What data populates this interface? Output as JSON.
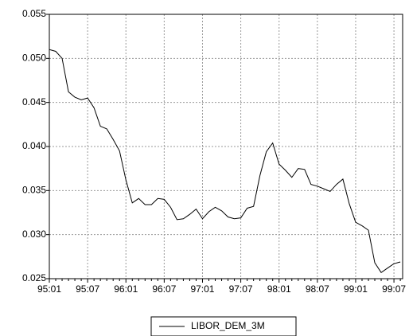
{
  "chart_data": {
    "type": "line",
    "categories": [
      "95:01",
      null,
      null,
      null,
      null,
      null,
      "95:07",
      null,
      null,
      null,
      null,
      null,
      "96:01",
      null,
      null,
      null,
      null,
      null,
      "96:07",
      null,
      null,
      null,
      null,
      null,
      "97:01",
      null,
      null,
      null,
      null,
      null,
      "97:07",
      null,
      null,
      null,
      null,
      null,
      "98:01",
      null,
      null,
      null,
      null,
      null,
      "98:07",
      null,
      null,
      null,
      null,
      null,
      "99:01",
      null,
      null,
      null,
      null,
      null,
      "99:07",
      null
    ],
    "series": [
      {
        "name": "LIBOR_DEM_3M",
        "color": "#000000",
        "values": [
          0.051,
          0.0508,
          0.05,
          0.0462,
          0.0456,
          0.0453,
          0.0455,
          0.0444,
          0.0423,
          0.042,
          0.0408,
          0.0395,
          0.0362,
          0.0336,
          0.0341,
          0.0334,
          0.0334,
          0.0341,
          0.034,
          0.0331,
          0.0317,
          0.0318,
          0.0323,
          0.0329,
          0.0318,
          0.0326,
          0.0331,
          0.0327,
          0.032,
          0.0318,
          0.0319,
          0.033,
          0.0332,
          0.0367,
          0.0394,
          0.0404,
          0.038,
          0.0373,
          0.0365,
          0.0375,
          0.0374,
          0.0357,
          0.0355,
          0.0352,
          0.0349,
          0.0357,
          0.0363,
          0.0335,
          0.0314,
          0.031,
          0.0305,
          0.0268,
          0.0257,
          0.0262,
          0.0267,
          0.0269
        ]
      }
    ],
    "ylim": [
      0.025,
      0.055
    ],
    "yticks": [
      {
        "value": 0.025,
        "label": "0.025"
      },
      {
        "value": 0.03,
        "label": "0.030"
      },
      {
        "value": 0.035,
        "label": "0.035"
      },
      {
        "value": 0.04,
        "label": "0.040"
      },
      {
        "value": 0.045,
        "label": "0.045"
      },
      {
        "value": 0.05,
        "label": "0.050"
      },
      {
        "value": 0.055,
        "label": "0.055"
      }
    ],
    "grid": true,
    "legend": "bottom"
  }
}
